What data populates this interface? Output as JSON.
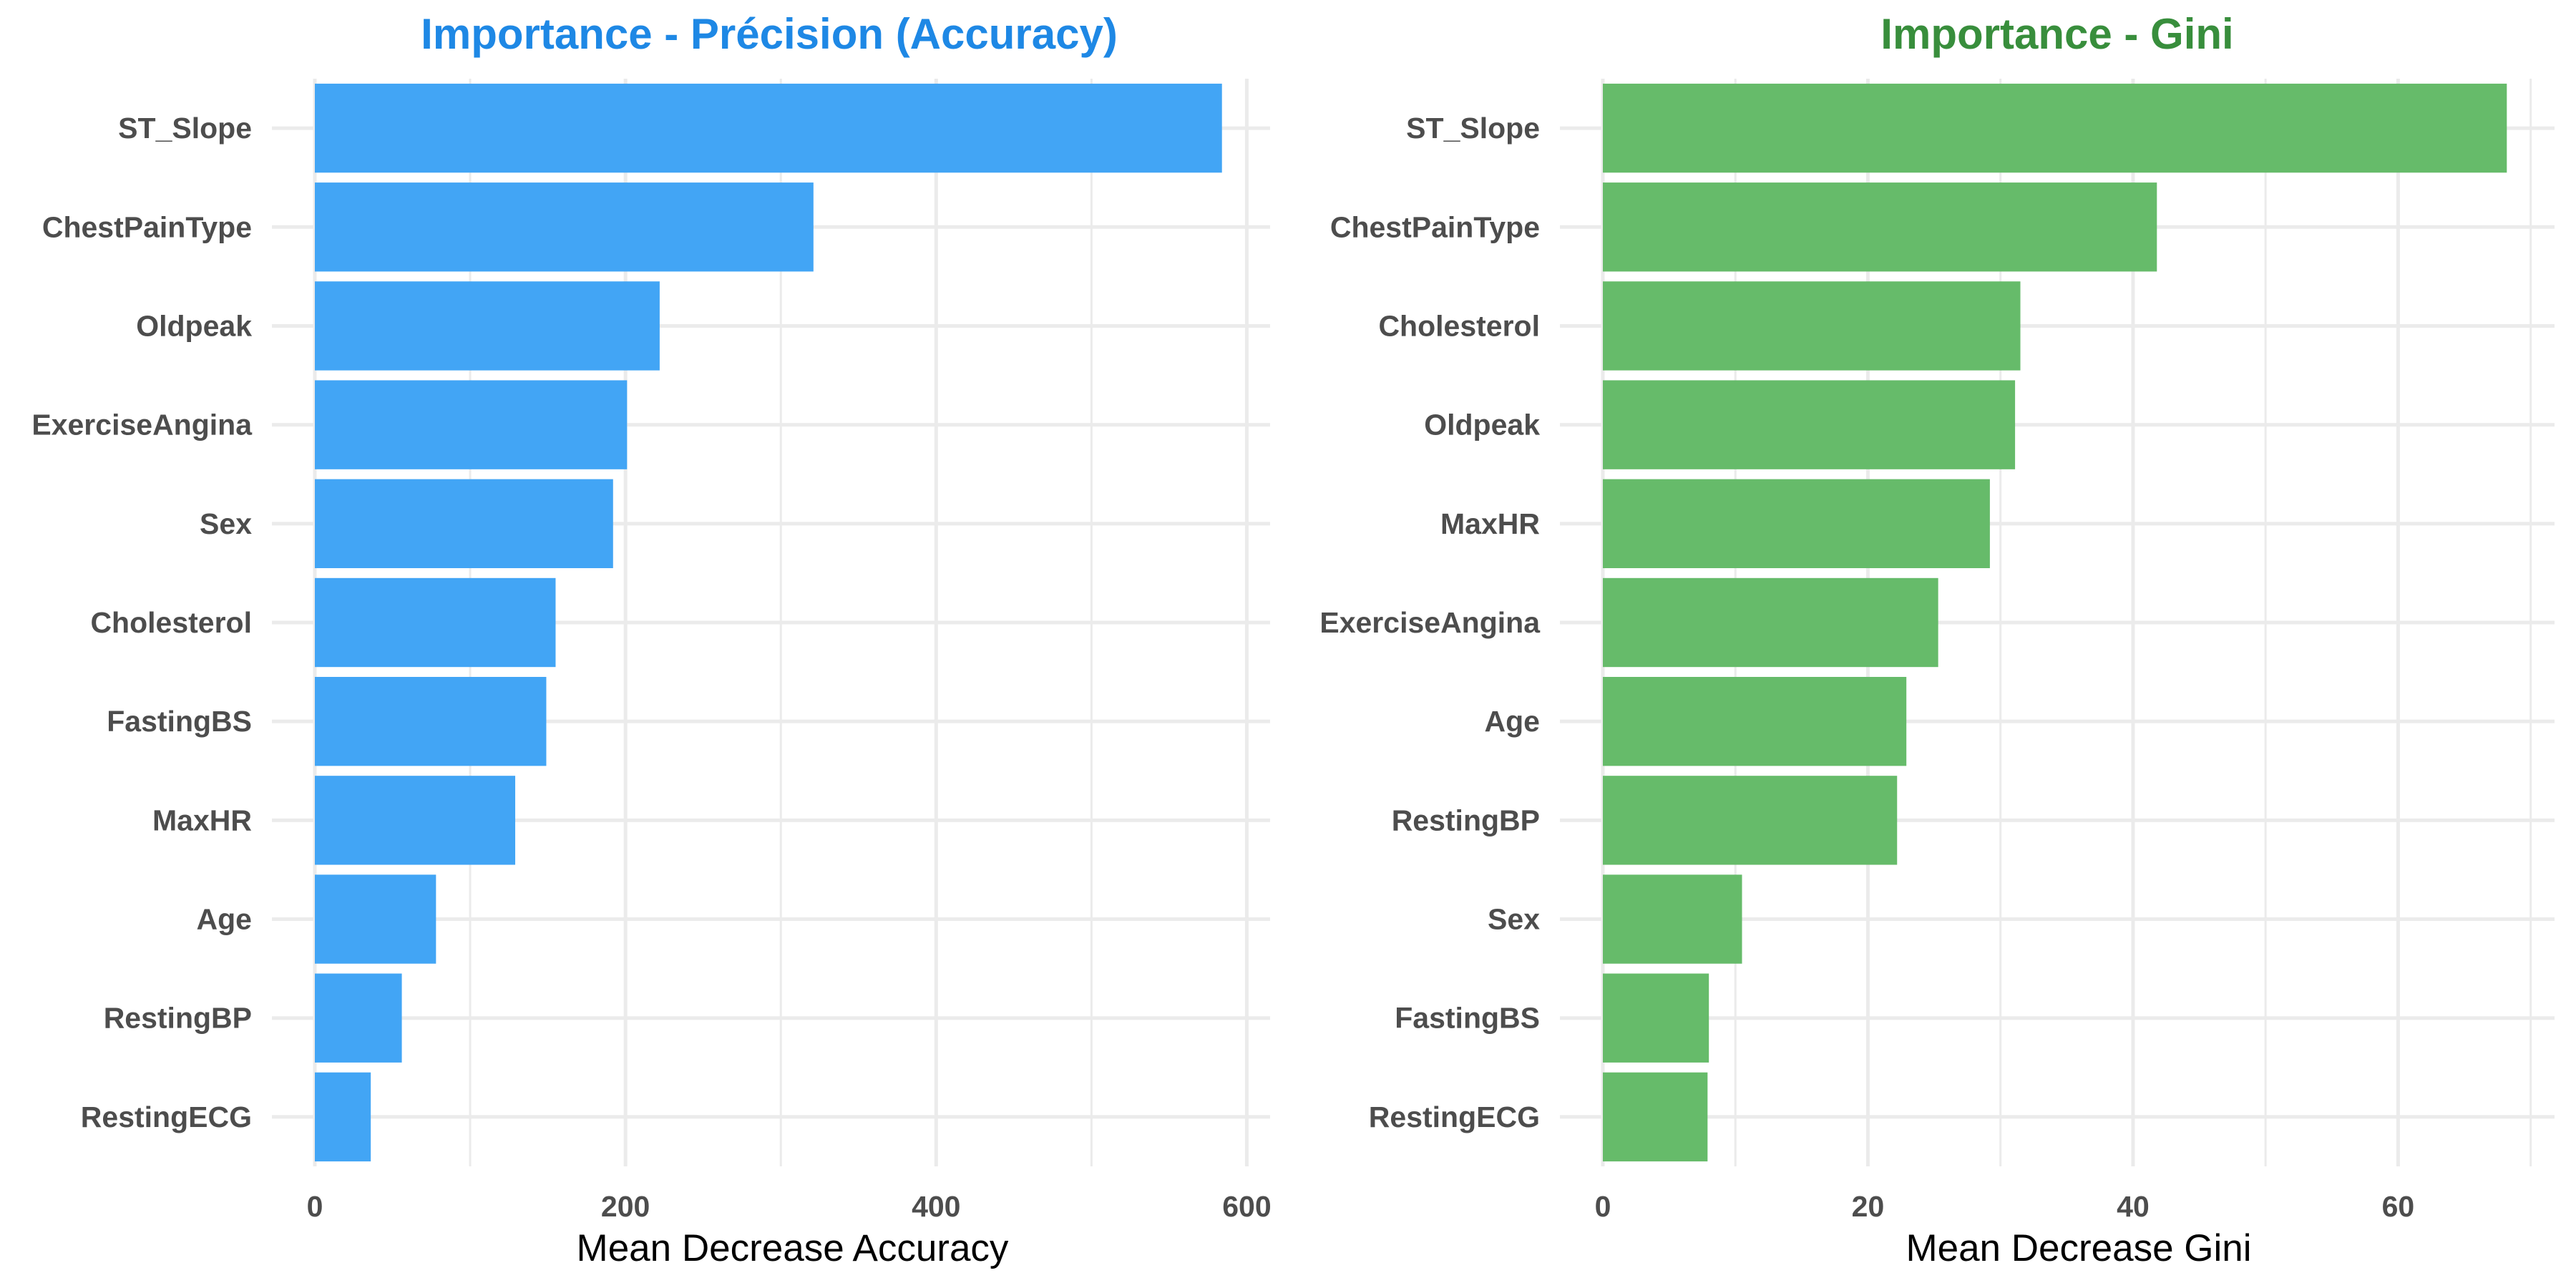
{
  "chart_data": [
    {
      "type": "bar",
      "orientation": "horizontal",
      "title": "Importance - Précision (Accuracy)",
      "title_color": "#1e88e5",
      "bar_color": "#42a5f5",
      "xlabel": "Mean Decrease Accuracy",
      "ylabel": "",
      "categories": [
        "ST_Slope",
        "ChestPainType",
        "Oldpeak",
        "ExerciseAngina",
        "Sex",
        "Cholesterol",
        "FastingBS",
        "MaxHR",
        "Age",
        "RestingBP",
        "RestingECG"
      ],
      "values": [
        584,
        321,
        222,
        201,
        192,
        155,
        149,
        129,
        78,
        56,
        36
      ],
      "xlim": [
        0,
        615
      ],
      "xticks": [
        0,
        200,
        400,
        600
      ],
      "grid": true
    },
    {
      "type": "bar",
      "orientation": "horizontal",
      "title": "Importance - Gini",
      "title_color": "#388e3c",
      "bar_color": "#66bb6a",
      "xlabel": "Mean Decrease Gini",
      "ylabel": "",
      "categories": [
        "ST_Slope",
        "ChestPainType",
        "Cholesterol",
        "Oldpeak",
        "MaxHR",
        "ExerciseAngina",
        "Age",
        "RestingBP",
        "Sex",
        "FastingBS",
        "RestingECG"
      ],
      "values": [
        68.2,
        41.8,
        31.5,
        31.1,
        29.2,
        25.3,
        22.9,
        22.2,
        10.5,
        8.0,
        7.9
      ],
      "xlim": [
        0,
        71.8
      ],
      "xticks": [
        0,
        20,
        40,
        60
      ],
      "grid": true
    }
  ]
}
